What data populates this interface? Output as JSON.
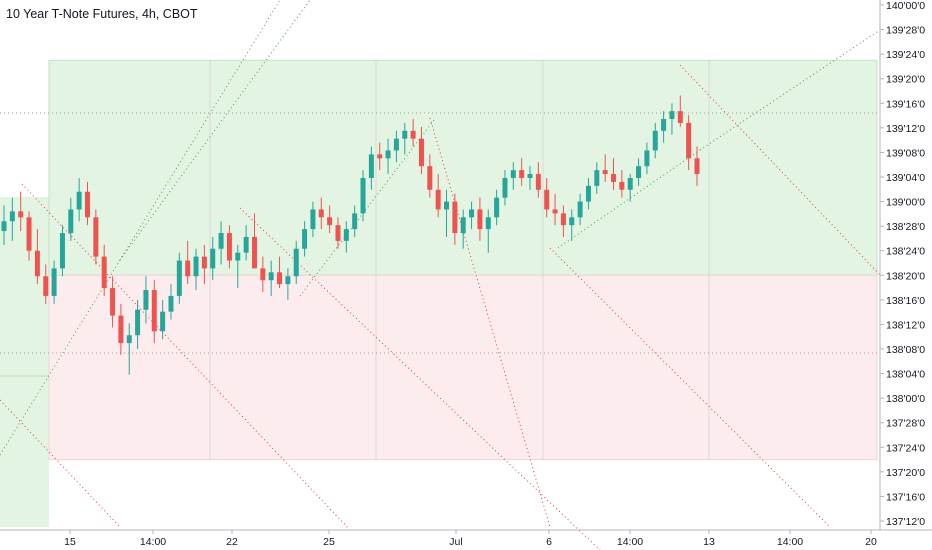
{
  "header": {
    "title": "10 Year T-Note Futures, 4h, CBOT"
  },
  "colors": {
    "up": "#26a69a",
    "down": "#ef5350",
    "green_zone": "#e3f4e3",
    "red_zone": "#fdecee",
    "green_line": "#43a047",
    "red_line": "#e53935"
  },
  "chart_data": {
    "type": "candlestick",
    "title": "10 Year T-Note Futures, 4h, CBOT",
    "ylim": [
      "137'11'0",
      "140'01'0"
    ],
    "y_ticks": [
      "140'00'0",
      "139'28'0",
      "139'24'0",
      "139'20'0",
      "139'16'0",
      "139'12'0",
      "139'08'0",
      "139'04'0",
      "139'00'0",
      "138'28'0",
      "138'24'0",
      "138'20'0",
      "138'16'0",
      "138'12'0",
      "138'08'0",
      "138'04'0",
      "138'00'0",
      "137'28'0",
      "137'24'0",
      "137'20'0",
      "137'16'0",
      "137'12'0"
    ],
    "x_ticks": [
      "15",
      "14:00",
      "22",
      "25",
      "Jul",
      "6",
      "14:00",
      "13",
      "14:00",
      "20"
    ],
    "grid": false,
    "zones": [
      {
        "name": "upper",
        "color": "green",
        "top": "139'23'0",
        "bottom": "138'20'0"
      },
      {
        "name": "lower",
        "color": "red",
        "top": "138'20'0",
        "bottom": "137'22'0"
      }
    ],
    "candles_ohlc": [
      [
        138.85,
        138.98,
        138.78,
        138.9
      ],
      [
        138.9,
        139.02,
        138.8,
        138.95
      ],
      [
        138.95,
        139.05,
        138.85,
        138.92
      ],
      [
        138.92,
        138.95,
        138.7,
        138.75
      ],
      [
        138.75,
        138.86,
        138.58,
        138.62
      ],
      [
        138.62,
        138.68,
        138.48,
        138.52
      ],
      [
        138.52,
        138.7,
        138.48,
        138.66
      ],
      [
        138.66,
        138.88,
        138.62,
        138.84
      ],
      [
        138.84,
        139.02,
        138.8,
        138.96
      ],
      [
        138.96,
        139.12,
        138.9,
        139.05
      ],
      [
        139.05,
        139.1,
        138.88,
        138.92
      ],
      [
        138.92,
        138.96,
        138.68,
        138.72
      ],
      [
        138.72,
        138.78,
        138.52,
        138.56
      ],
      [
        138.56,
        138.62,
        138.36,
        138.42
      ],
      [
        138.42,
        138.48,
        138.22,
        138.28
      ],
      [
        138.28,
        138.38,
        138.12,
        138.32
      ],
      [
        138.32,
        138.5,
        138.25,
        138.45
      ],
      [
        138.45,
        138.62,
        138.38,
        138.55
      ],
      [
        138.55,
        138.6,
        138.28,
        138.34
      ],
      [
        138.34,
        138.5,
        138.3,
        138.44
      ],
      [
        138.44,
        138.58,
        138.4,
        138.52
      ],
      [
        138.52,
        138.74,
        138.48,
        138.7
      ],
      [
        138.7,
        138.8,
        138.58,
        138.62
      ],
      [
        138.62,
        138.76,
        138.55,
        138.72
      ],
      [
        138.72,
        138.78,
        138.58,
        138.66
      ],
      [
        138.66,
        138.82,
        138.6,
        138.76
      ],
      [
        138.76,
        138.9,
        138.68,
        138.84
      ],
      [
        138.84,
        138.88,
        138.66,
        138.7
      ],
      [
        138.7,
        138.78,
        138.56,
        138.74
      ],
      [
        138.74,
        138.88,
        138.7,
        138.82
      ],
      [
        138.82,
        138.94,
        138.76,
        138.66
      ],
      [
        138.66,
        138.72,
        138.54,
        138.6
      ],
      [
        138.6,
        138.7,
        138.52,
        138.64
      ],
      [
        138.64,
        138.72,
        138.56,
        138.58
      ],
      [
        138.58,
        138.66,
        138.5,
        138.62
      ],
      [
        138.62,
        138.8,
        138.58,
        138.76
      ],
      [
        138.76,
        138.9,
        138.72,
        138.86
      ],
      [
        138.86,
        139.0,
        138.82,
        138.96
      ],
      [
        138.96,
        139.02,
        138.86,
        138.92
      ],
      [
        138.92,
        138.98,
        138.84,
        138.88
      ],
      [
        138.88,
        138.92,
        138.76,
        138.8
      ],
      [
        138.8,
        138.9,
        138.74,
        138.86
      ],
      [
        138.86,
        138.98,
        138.82,
        138.94
      ],
      [
        138.94,
        139.16,
        138.9,
        139.12
      ],
      [
        139.12,
        139.28,
        139.06,
        139.24
      ],
      [
        139.24,
        139.3,
        139.16,
        139.22
      ],
      [
        139.22,
        139.32,
        139.14,
        139.26
      ],
      [
        139.26,
        139.36,
        139.2,
        139.32
      ],
      [
        139.32,
        139.4,
        139.24,
        139.36
      ],
      [
        139.36,
        139.42,
        139.28,
        139.32
      ],
      [
        139.32,
        139.38,
        139.14,
        139.18
      ],
      [
        139.18,
        139.24,
        139.02,
        139.06
      ],
      [
        139.06,
        139.14,
        138.92,
        138.96
      ],
      [
        138.96,
        139.06,
        138.82,
        139.0
      ],
      [
        139.0,
        139.04,
        138.78,
        138.84
      ],
      [
        138.84,
        138.96,
        138.76,
        138.92
      ],
      [
        138.92,
        139.0,
        138.86,
        138.96
      ],
      [
        138.96,
        139.02,
        138.8,
        138.86
      ],
      [
        138.86,
        138.96,
        138.74,
        138.92
      ],
      [
        138.92,
        139.06,
        138.88,
        139.02
      ],
      [
        139.02,
        139.16,
        138.98,
        139.12
      ],
      [
        139.12,
        139.2,
        139.06,
        139.16
      ],
      [
        139.16,
        139.22,
        139.08,
        139.12
      ],
      [
        139.12,
        139.18,
        139.06,
        139.14
      ],
      [
        139.14,
        139.2,
        139.02,
        139.06
      ],
      [
        139.06,
        139.12,
        138.92,
        138.96
      ],
      [
        138.96,
        139.04,
        138.88,
        138.94
      ],
      [
        138.94,
        138.98,
        138.82,
        138.88
      ],
      [
        138.88,
        138.96,
        138.8,
        138.92
      ],
      [
        138.92,
        139.04,
        138.88,
        139.0
      ],
      [
        139.0,
        139.12,
        138.96,
        139.08
      ],
      [
        139.08,
        139.2,
        139.04,
        139.16
      ],
      [
        139.16,
        139.24,
        139.1,
        139.14
      ],
      [
        139.14,
        139.22,
        139.06,
        139.1
      ],
      [
        139.1,
        139.16,
        139.02,
        139.06
      ],
      [
        139.06,
        139.14,
        139.0,
        139.12
      ],
      [
        139.12,
        139.22,
        139.08,
        139.18
      ],
      [
        139.18,
        139.3,
        139.14,
        139.26
      ],
      [
        139.26,
        139.4,
        139.22,
        139.36
      ],
      [
        139.36,
        139.46,
        139.3,
        139.42
      ],
      [
        139.42,
        139.5,
        139.34,
        139.46
      ],
      [
        139.46,
        139.54,
        139.38,
        139.4
      ],
      [
        139.4,
        139.44,
        139.16,
        139.22
      ],
      [
        139.22,
        139.28,
        139.08,
        139.14
      ]
    ]
  }
}
